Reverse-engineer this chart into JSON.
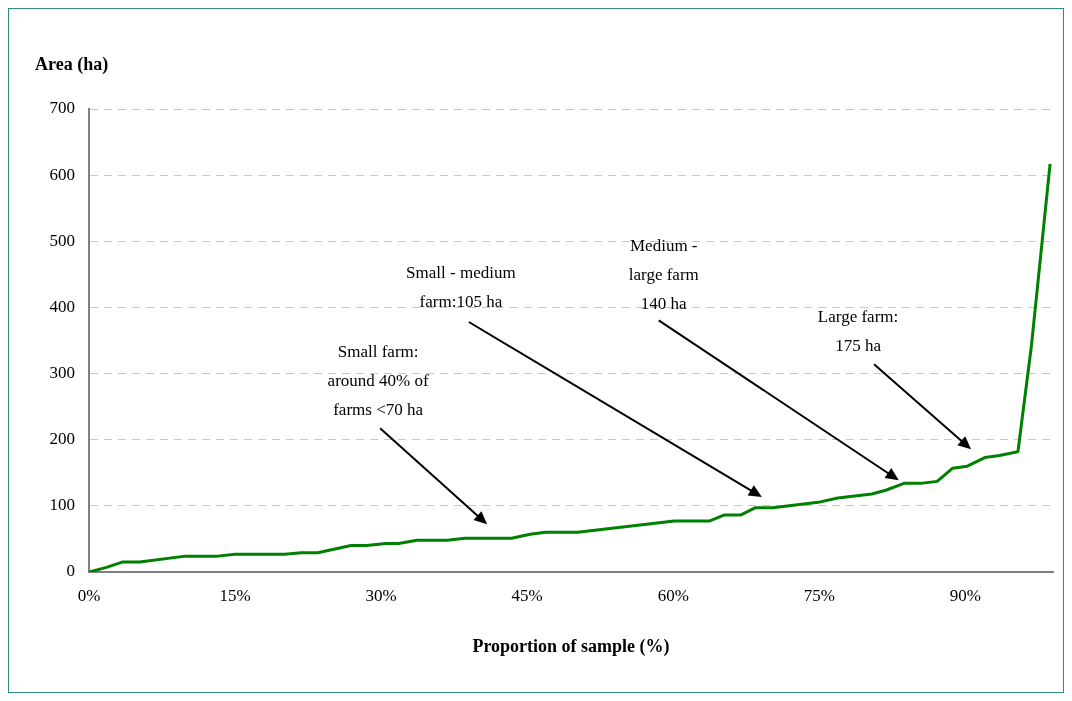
{
  "chart_data": {
    "type": "line",
    "xlabel": "Proportion of sample (%)",
    "ylabel": "Area (ha)",
    "x": [
      0,
      1.8,
      3.4,
      5.2,
      9.9,
      13.2,
      15,
      20.1,
      21.8,
      23.5,
      26.9,
      28.5,
      30.5,
      31.8,
      33.7,
      36.8,
      38.6,
      43.4,
      45.3,
      46.9,
      50.2,
      60.1,
      63.7,
      65.2,
      66.9,
      68.4,
      70.2,
      75.1,
      76.9,
      80.4,
      81.9,
      83.7,
      85.4,
      87.1,
      88.7,
      90.2,
      92,
      93.5,
      95.4,
      96.8,
      98.7
    ],
    "series": [
      {
        "color": "#008000",
        "values": [
          0,
          7,
          15,
          15,
          24,
          24,
          27,
          27,
          29,
          29,
          40,
          40,
          43,
          43,
          48,
          48,
          51,
          51,
          57,
          60,
          60,
          77,
          77,
          86,
          86,
          97,
          97,
          106,
          112,
          118,
          124,
          134,
          134,
          137,
          157,
          160,
          173,
          176,
          182,
          344,
          617
        ]
      }
    ],
    "xlim": [
      0,
      99
    ],
    "xticks": [
      {
        "value": 0,
        "label": "0%"
      },
      {
        "value": 15,
        "label": "15%"
      },
      {
        "value": 30,
        "label": "30%"
      },
      {
        "value": 45,
        "label": "45%"
      },
      {
        "value": 60,
        "label": "60%"
      },
      {
        "value": 75,
        "label": "75%"
      },
      {
        "value": 90,
        "label": "90%"
      }
    ],
    "ylim": [
      0,
      700
    ],
    "yticks": [
      0,
      100,
      200,
      300,
      400,
      500,
      600,
      700
    ],
    "grid": "y",
    "legend": false,
    "marker": "none",
    "line_style": "solid",
    "annotations": [
      "Small farm:\naround 40% of\nfarms <70 ha",
      "Small - medium\nfarm:105 ha",
      "Medium -\nlarge farm\n140 ha",
      "Large farm:\n175 ha"
    ]
  }
}
